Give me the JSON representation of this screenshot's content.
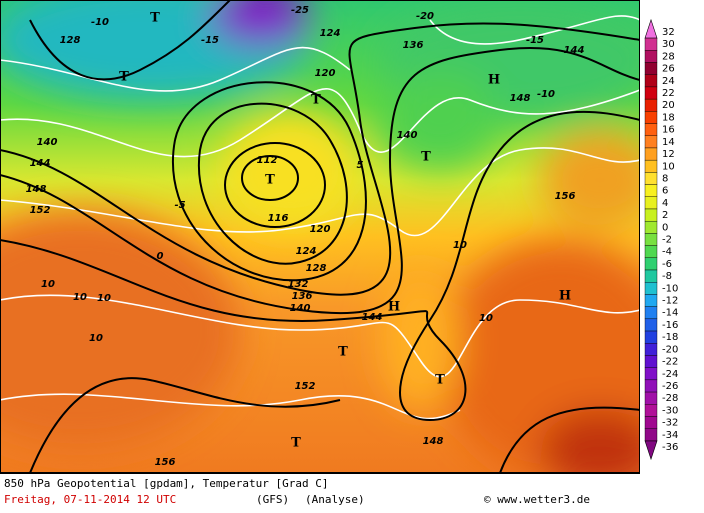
{
  "map": {
    "labels": [
      "112",
      "116",
      "120",
      "124",
      "128",
      "132",
      "136",
      "140",
      "144",
      "148",
      "152",
      "156",
      "156",
      "148",
      "144",
      "140",
      "136",
      "120",
      "124",
      "T",
      "T",
      "T",
      "H",
      "H",
      "H",
      "T",
      "T",
      "T",
      "T",
      "-5",
      "-10",
      "-15",
      "-20",
      "-25",
      "0",
      "5",
      "10",
      "10",
      "10",
      "10",
      "10",
      "10",
      "144",
      "140",
      "148",
      "152",
      "128",
      "-10",
      "-15",
      "T"
    ]
  },
  "legend": {
    "labels": [
      32,
      30,
      28,
      26,
      24,
      22,
      20,
      18,
      16,
      14,
      12,
      10,
      8,
      6,
      4,
      2,
      0,
      -2,
      -4,
      -6,
      -8,
      -10,
      -12,
      -14,
      -16,
      -18,
      -20,
      -22,
      -24,
      -26,
      -28,
      -30,
      -32,
      -34,
      -36
    ],
    "colors": [
      "#f070e0",
      "#d03090",
      "#b01060",
      "#900030",
      "#b00018",
      "#d00010",
      "#e82000",
      "#f84000",
      "#ff6010",
      "#ff8020",
      "#ffa020",
      "#ffc020",
      "#ffe030",
      "#f8f020",
      "#e8f020",
      "#c8f020",
      "#a0e830",
      "#78e040",
      "#50d850",
      "#30d070",
      "#20c8a0",
      "#20c0d0",
      "#20a8f0",
      "#2080f0",
      "#2060e8",
      "#2040e0",
      "#4020d8",
      "#6010d0",
      "#8010c8",
      "#9010b8",
      "#a010a8",
      "#b01098",
      "#a00890",
      "#900888",
      "#800880"
    ]
  },
  "footer": {
    "line1": "850 hPa Geopotential [gpdam], Temperatur [Grad C]",
    "date": "Freitag, 07-11-2014  12 UTC",
    "model": "(GFS)",
    "run": "(Analyse)",
    "credit": "© www.wetter3.de"
  }
}
